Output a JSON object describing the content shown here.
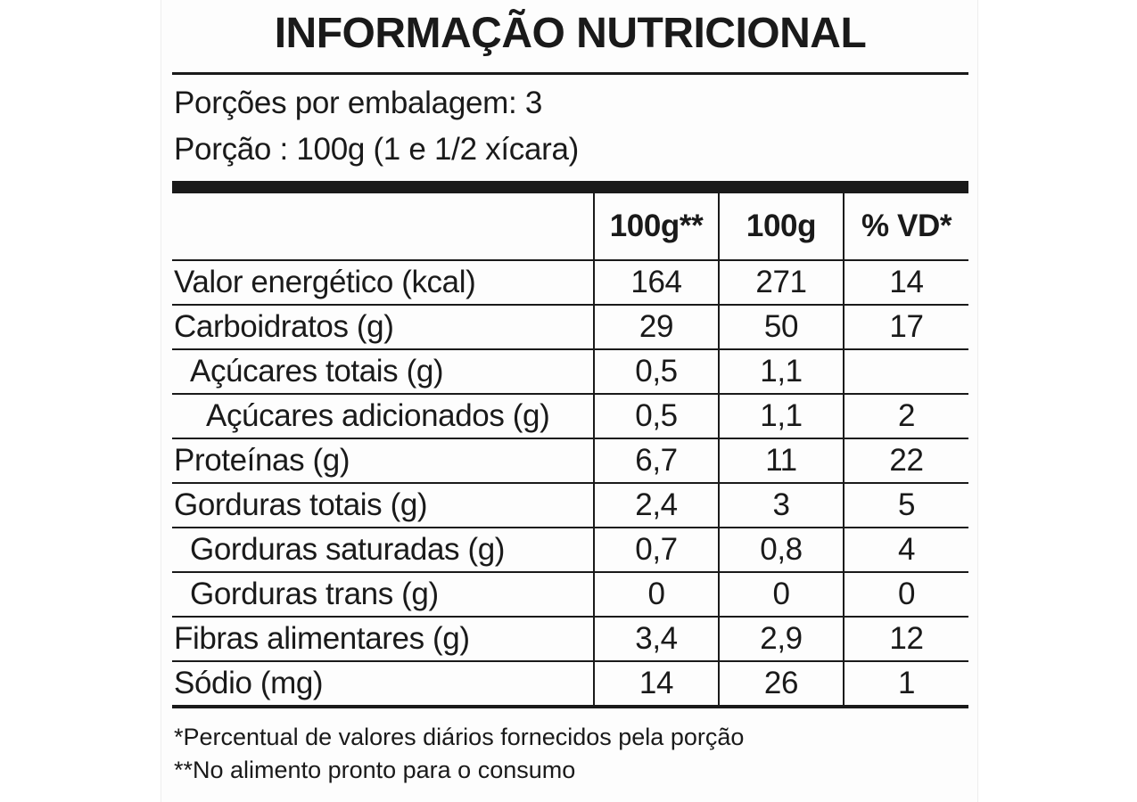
{
  "header": {
    "title": "INFORMAÇÃO NUTRICIONAL",
    "servings": "Porções por embalagem: 3",
    "portion": "Porção : 100g (1 e 1/2 xícara)"
  },
  "table": {
    "columns": [
      "100g**",
      "100g",
      "% VD*"
    ],
    "rows": [
      [
        "Valor energético (kcal)",
        "164",
        "271",
        "14"
      ],
      [
        "Carboidratos (g)",
        "29",
        "50",
        "17"
      ],
      [
        "Açúcares totais (g)",
        "0,5",
        "1,1",
        null
      ],
      [
        "Açúcares adicionados (g)",
        "0,5",
        "1,1",
        "2"
      ],
      [
        "Proteínas (g)",
        "6,7",
        "11",
        "22"
      ],
      [
        "Gorduras totais (g)",
        "2,4",
        "3",
        "5"
      ],
      [
        "Gorduras saturadas (g)",
        "0,7",
        "0,8",
        "4"
      ],
      [
        "Gorduras trans (g)",
        "0",
        "0",
        "0"
      ],
      [
        "Fibras alimentares (g)",
        "3,4",
        "2,9",
        "12"
      ],
      [
        "Sódio (mg)",
        "14",
        "26",
        "1"
      ]
    ]
  },
  "footnotes": [
    "*Percentual de valores diários fornecidos pela porção",
    "**No alimento pronto para o consumo"
  ]
}
